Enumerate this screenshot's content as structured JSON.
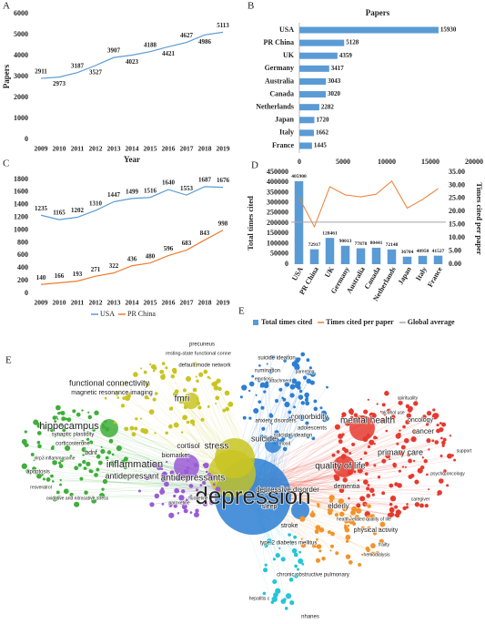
{
  "chart_data": [
    {
      "type": "line",
      "panel": "A",
      "x_label": "Year",
      "y_label": "Papers",
      "categories": [
        "2009",
        "2010",
        "2011",
        "2012",
        "2013",
        "2014",
        "2015",
        "2016",
        "2017",
        "2018",
        "2019"
      ],
      "series": [
        {
          "name": "Papers",
          "color": "#5b9bd5",
          "values": [
            2911,
            2973,
            3187,
            3527,
            3907,
            4023,
            4188,
            4421,
            4627,
            4986,
            5113
          ]
        }
      ],
      "ylim": [
        0,
        6000
      ],
      "yticks": [
        0,
        1000,
        2000,
        3000,
        4000,
        5000,
        6000
      ],
      "legend": false
    },
    {
      "type": "hbar",
      "panel": "B",
      "title": "Papers",
      "categories": [
        "USA",
        "PR China",
        "UK",
        "Germany",
        "Australia",
        "Canada",
        "Netherlands",
        "Japan",
        "Italy",
        "France"
      ],
      "values": [
        15930,
        5128,
        4359,
        3417,
        3043,
        3020,
        2282,
        1720,
        1662,
        1445
      ],
      "color": "#5b9bd5",
      "xlim": [
        0,
        20000
      ],
      "xticks": [
        0,
        5000,
        10000,
        15000,
        20000
      ]
    },
    {
      "type": "line",
      "panel": "C",
      "categories": [
        "2009",
        "2010",
        "2011",
        "2012",
        "2013",
        "2014",
        "2015",
        "2016",
        "2017",
        "2018",
        "2019"
      ],
      "series": [
        {
          "name": "USA",
          "color": "#5b9bd5",
          "values": [
            1235,
            1165,
            1202,
            1310,
            1447,
            1499,
            1516,
            1640,
            1553,
            1687,
            1676
          ]
        },
        {
          "name": "PR China",
          "color": "#ed7d31",
          "values": [
            140,
            166,
            193,
            271,
            322,
            436,
            480,
            596,
            683,
            843,
            998
          ]
        }
      ],
      "ylim": [
        0,
        1800
      ],
      "yticks": [
        0,
        200,
        400,
        600,
        800,
        1000,
        1200,
        1400,
        1600,
        1800
      ],
      "legend": true
    },
    {
      "type": "combo",
      "panel": "D",
      "corner_label": "E",
      "y_label": "Total times cited",
      "y2_label": "Times cited per paper",
      "categories": [
        "USA",
        "PR China",
        "UK",
        "Germany",
        "Australia",
        "Canada",
        "Netherlands",
        "Japan",
        "Italy",
        "France"
      ],
      "series": [
        {
          "name": "Total times cited",
          "color": "#5b9bd5",
          "values": [
            405900,
            72917,
            128461,
            90013,
            77878,
            80441,
            72148,
            36704,
            40950,
            41527
          ]
        },
        {
          "name": "Times cited per paper",
          "color": "#ed7d31",
          "axis": "y2",
          "values": [
            25.48,
            14.22,
            29.47,
            26.34,
            25.59,
            26.64,
            31.62,
            21.34,
            24.64,
            28.74
          ]
        },
        {
          "name": "Global average",
          "color": "#a5a5a5",
          "axis": "y2",
          "value": 16
        }
      ],
      "ylim": [
        0,
        450000
      ],
      "yticks": [
        0,
        50000,
        100000,
        150000,
        200000,
        250000,
        300000,
        350000,
        400000,
        450000
      ],
      "y2lim": [
        0,
        35
      ],
      "y2ticks": [
        {
          "value": 0,
          "label": "0.00"
        },
        {
          "value": 5,
          "label": "5.00"
        },
        {
          "value": 10,
          "label": "10.00"
        },
        {
          "value": 15,
          "label": "15.00"
        },
        {
          "value": 20,
          "label": "20.00"
        },
        {
          "value": 25,
          "label": "25.00"
        },
        {
          "value": 30,
          "label": "30.00"
        },
        {
          "value": 35,
          "label": "35.00"
        }
      ]
    }
  ],
  "network": {
    "panel": "E",
    "clusters": [
      "#e53a2f",
      "#3fae3a",
      "#c9c422",
      "#2c7fd3",
      "#9a5bd6",
      "#27c4d8",
      "#f2942c"
    ],
    "nodes": [
      {
        "label": "depression",
        "cluster": 3
      },
      {
        "label": "stress",
        "cluster": 2
      },
      {
        "label": "inflammation",
        "cluster": 4
      },
      {
        "label": "hippocampus",
        "cluster": 1
      },
      {
        "label": "mental health",
        "cluster": 0
      },
      {
        "label": "quality of life",
        "cluster": 0
      },
      {
        "label": "antidepressants",
        "cluster": 4
      },
      {
        "label": "antidepressant",
        "cluster": 4
      },
      {
        "label": "depressive disorder",
        "cluster": 3
      },
      {
        "label": "primary care",
        "cluster": 0
      },
      {
        "label": "suicide",
        "cluster": 3
      },
      {
        "label": "comorbidity",
        "cluster": 3
      },
      {
        "label": "fmri",
        "cluster": 2
      },
      {
        "label": "functional connectivity",
        "cluster": 2
      },
      {
        "label": "cortisol",
        "cluster": 2
      },
      {
        "label": "default mode network",
        "cluster": 2
      },
      {
        "label": "elderly",
        "cluster": 6
      },
      {
        "label": "biomarker",
        "cluster": 4
      },
      {
        "label": "magnetic resonance imaging",
        "cluster": 2
      },
      {
        "label": "dementia",
        "cluster": 6
      },
      {
        "label": "stroke",
        "cluster": 6
      },
      {
        "label": "anxiety disorders",
        "cluster": 3
      },
      {
        "label": "adolescents",
        "cluster": 3
      },
      {
        "label": "cancer",
        "cluster": 0
      },
      {
        "label": "oncology",
        "cluster": 0
      },
      {
        "label": "sleep",
        "cluster": 3
      },
      {
        "label": "physical activity",
        "cluster": 6
      },
      {
        "label": "chronic obstructive pulmonary",
        "cluster": 6
      },
      {
        "label": "nhanes",
        "cluster": 5
      },
      {
        "label": "precuneus",
        "cluster": 2
      },
      {
        "label": "resting-state functional conne",
        "cluster": 2
      },
      {
        "label": "rumination",
        "cluster": 3
      },
      {
        "label": "suicide ideation",
        "cluster": 3
      },
      {
        "label": "hepatitis c",
        "cluster": 5
      },
      {
        "label": "corticosterone",
        "cluster": 1
      },
      {
        "label": "bdnf",
        "cluster": 1
      },
      {
        "label": "apoptosis",
        "cluster": 1
      },
      {
        "label": "resveratrol",
        "cluster": 1
      },
      {
        "label": "oxidative and nitrosative stress",
        "cluster": 1
      },
      {
        "label": "type 2 diabetes mellitus",
        "cluster": 6
      },
      {
        "label": "health-related quality of life",
        "cluster": 6
      },
      {
        "label": "psycho-oncology",
        "cluster": 0
      },
      {
        "label": "suicidal ideation",
        "cluster": 3
      },
      {
        "label": "mood",
        "cluster": 3
      },
      {
        "label": "emotions",
        "cluster": 3
      },
      {
        "label": "synaptic plasticity",
        "cluster": 1
      },
      {
        "label": "nlrp3 inflammasome",
        "cluster": 1
      },
      {
        "label": "paroxetine",
        "cluster": 4
      },
      {
        "label": "fluoxetine",
        "cluster": 4
      },
      {
        "label": "hemodialysis",
        "cluster": 6
      },
      {
        "label": "frailty",
        "cluster": 6
      },
      {
        "label": "caregiver",
        "cluster": 0
      },
      {
        "label": "support",
        "cluster": 0
      },
      {
        "label": "spirituality",
        "cluster": 0
      },
      {
        "label": "alcohol use",
        "cluster": 0
      },
      {
        "label": "attachment",
        "cluster": 3
      },
      {
        "label": "parenting",
        "cluster": 3
      }
    ]
  }
}
